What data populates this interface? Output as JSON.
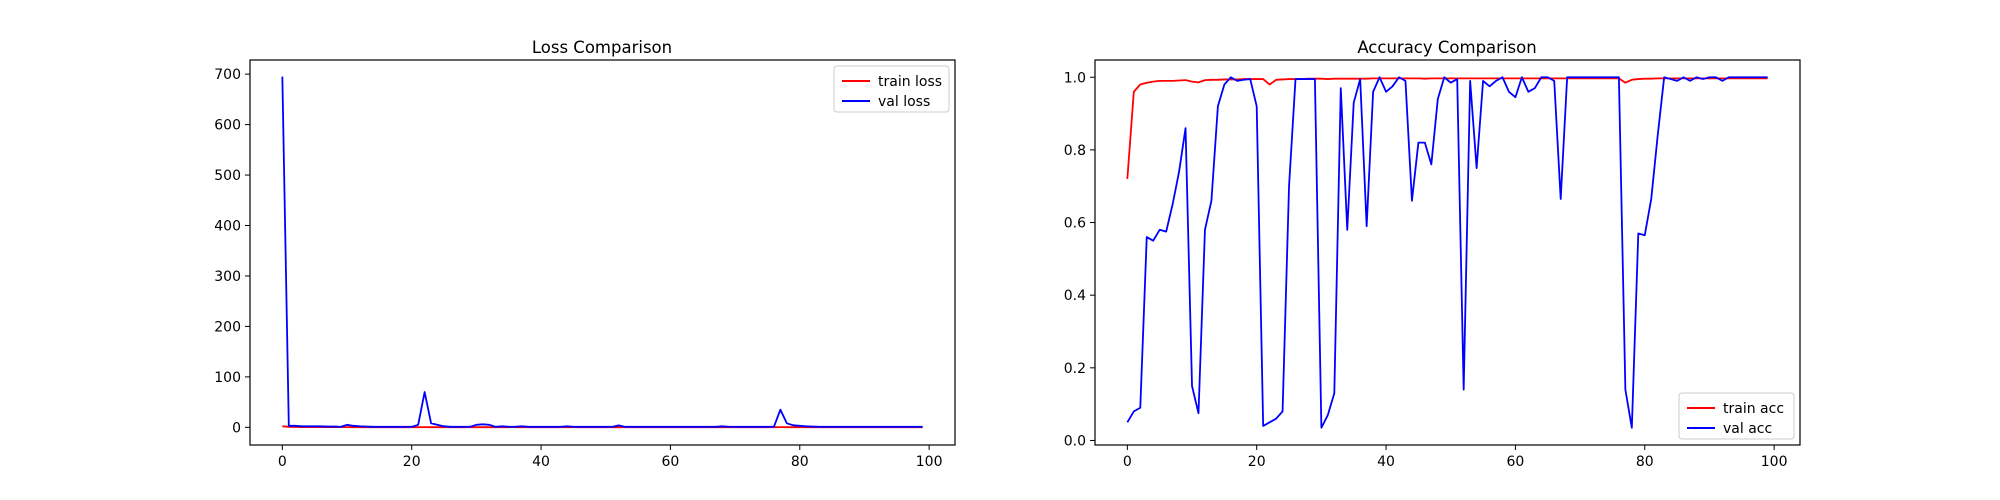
{
  "chart_data": [
    {
      "type": "line",
      "title": "Loss Comparison",
      "xlabel": "",
      "ylabel": "",
      "xlim": [
        -5,
        104
      ],
      "ylim": [
        -35,
        728
      ],
      "xticks": [
        0,
        20,
        40,
        60,
        80,
        100
      ],
      "yticks": [
        0,
        100,
        200,
        300,
        400,
        500,
        600,
        700
      ],
      "legend_position": "top-right",
      "grid": false,
      "series": [
        {
          "name": "train loss",
          "color": "#ff0000",
          "x": [
            0,
            1,
            2,
            3,
            4,
            5,
            6,
            7,
            8,
            9,
            10,
            11,
            12,
            13,
            14,
            15,
            16,
            17,
            18,
            19,
            20,
            21,
            22,
            23,
            24,
            25,
            26,
            27,
            28,
            29,
            30,
            31,
            32,
            33,
            34,
            35,
            36,
            37,
            38,
            39,
            40,
            41,
            42,
            43,
            44,
            45,
            46,
            47,
            48,
            49,
            50,
            51,
            52,
            53,
            54,
            55,
            56,
            57,
            58,
            59,
            60,
            61,
            62,
            63,
            64,
            65,
            66,
            67,
            68,
            69,
            70,
            71,
            72,
            73,
            74,
            75,
            76,
            77,
            78,
            79,
            80,
            81,
            82,
            83,
            84,
            85,
            86,
            87,
            88,
            89,
            90,
            91,
            92,
            93,
            94,
            95,
            96,
            97,
            98,
            99
          ],
          "values": [
            2,
            1,
            0.8,
            0.6,
            0.5,
            0.5,
            0.4,
            0.4,
            0.4,
            0.4,
            0.4,
            0.3,
            0.3,
            0.3,
            0.3,
            0.3,
            0.3,
            0.3,
            0.3,
            0.3,
            0.3,
            0.3,
            0.4,
            0.3,
            0.3,
            0.3,
            0.3,
            0.3,
            0.3,
            0.3,
            0.3,
            0.3,
            0.3,
            0.3,
            0.3,
            0.3,
            0.3,
            0.3,
            0.3,
            0.3,
            0.3,
            0.3,
            0.3,
            0.3,
            0.3,
            0.3,
            0.3,
            0.3,
            0.3,
            0.3,
            0.3,
            0.3,
            0.3,
            0.3,
            0.3,
            0.3,
            0.3,
            0.3,
            0.3,
            0.3,
            0.3,
            0.3,
            0.3,
            0.3,
            0.3,
            0.3,
            0.3,
            0.3,
            0.3,
            0.3,
            0.3,
            0.3,
            0.3,
            0.3,
            0.3,
            0.3,
            0.3,
            0.4,
            0.3,
            0.3,
            0.3,
            0.3,
            0.3,
            0.3,
            0.3,
            0.3,
            0.3,
            0.3,
            0.3,
            0.3,
            0.3,
            0.3,
            0.3,
            0.3,
            0.3,
            0.3,
            0.3,
            0.3,
            0.3,
            0.3
          ]
        },
        {
          "name": "val loss",
          "color": "#0000ff",
          "x": [
            0,
            1,
            2,
            3,
            4,
            5,
            6,
            7,
            8,
            9,
            10,
            11,
            12,
            13,
            14,
            15,
            16,
            17,
            18,
            19,
            20,
            21,
            22,
            23,
            24,
            25,
            26,
            27,
            28,
            29,
            30,
            31,
            32,
            33,
            34,
            35,
            36,
            37,
            38,
            39,
            40,
            41,
            42,
            43,
            44,
            45,
            46,
            47,
            48,
            49,
            50,
            51,
            52,
            53,
            54,
            55,
            56,
            57,
            58,
            59,
            60,
            61,
            62,
            63,
            64,
            65,
            66,
            67,
            68,
            69,
            70,
            71,
            72,
            73,
            74,
            75,
            76,
            77,
            78,
            79,
            80,
            81,
            82,
            83,
            84,
            85,
            86,
            87,
            88,
            89,
            90,
            91,
            92,
            93,
            94,
            95,
            96,
            97,
            98,
            99
          ],
          "values": [
            695,
            3,
            3,
            2,
            2,
            2,
            2,
            1.5,
            1.5,
            1,
            5,
            3,
            2,
            1.5,
            1,
            1,
            1,
            1,
            1,
            1,
            1,
            5,
            70,
            8,
            5,
            2,
            1,
            1,
            1,
            1,
            5,
            6,
            5,
            1,
            2,
            1,
            1,
            2,
            1,
            1,
            1,
            1,
            1,
            1,
            2,
            1,
            1,
            1,
            1,
            1,
            1,
            1,
            4,
            1,
            1,
            1,
            1,
            1,
            1,
            1,
            1,
            1,
            1,
            1,
            1,
            1,
            1,
            1,
            2,
            1,
            1,
            1,
            1,
            1,
            1,
            1,
            1,
            35,
            8,
            4,
            3,
            2,
            1.5,
            1,
            1,
            1,
            1,
            1,
            1,
            1,
            1,
            1,
            1,
            1,
            1,
            1,
            1,
            1,
            1,
            1
          ]
        }
      ]
    },
    {
      "type": "line",
      "title": "Accuracy Comparison",
      "xlabel": "",
      "ylabel": "",
      "xlim": [
        -5,
        104
      ],
      "ylim": [
        -0.0125,
        1.0475
      ],
      "xticks": [
        0,
        20,
        40,
        60,
        80,
        100
      ],
      "yticks": [
        0.0,
        0.2,
        0.4,
        0.6,
        0.8,
        1.0
      ],
      "ytick_labels": [
        "0.0",
        "0.2",
        "0.4",
        "0.6",
        "0.8",
        "1.0"
      ],
      "legend_position": "bottom-right",
      "grid": false,
      "series": [
        {
          "name": "train acc",
          "color": "#ff0000",
          "x": [
            0,
            1,
            2,
            3,
            4,
            5,
            6,
            7,
            8,
            9,
            10,
            11,
            12,
            13,
            14,
            15,
            16,
            17,
            18,
            19,
            20,
            21,
            22,
            23,
            24,
            25,
            26,
            27,
            28,
            29,
            30,
            31,
            32,
            33,
            34,
            35,
            36,
            37,
            38,
            39,
            40,
            41,
            42,
            43,
            44,
            45,
            46,
            47,
            48,
            49,
            50,
            51,
            52,
            53,
            54,
            55,
            56,
            57,
            58,
            59,
            60,
            61,
            62,
            63,
            64,
            65,
            66,
            67,
            68,
            69,
            70,
            71,
            72,
            73,
            74,
            75,
            76,
            77,
            78,
            79,
            80,
            81,
            82,
            83,
            84,
            85,
            86,
            87,
            88,
            89,
            90,
            91,
            92,
            93,
            94,
            95,
            96,
            97,
            98,
            99
          ],
          "values": [
            0.72,
            0.96,
            0.98,
            0.985,
            0.988,
            0.99,
            0.99,
            0.99,
            0.991,
            0.992,
            0.988,
            0.986,
            0.992,
            0.993,
            0.993,
            0.994,
            0.994,
            0.994,
            0.995,
            0.995,
            0.995,
            0.995,
            0.98,
            0.993,
            0.994,
            0.995,
            0.995,
            0.995,
            0.996,
            0.996,
            0.996,
            0.995,
            0.996,
            0.996,
            0.996,
            0.996,
            0.996,
            0.996,
            0.997,
            0.997,
            0.997,
            0.997,
            0.997,
            0.997,
            0.997,
            0.997,
            0.996,
            0.997,
            0.997,
            0.997,
            0.997,
            0.997,
            0.997,
            0.997,
            0.997,
            0.997,
            0.997,
            0.997,
            0.997,
            0.997,
            0.997,
            0.997,
            0.997,
            0.997,
            0.997,
            0.997,
            0.997,
            0.997,
            0.997,
            0.997,
            0.997,
            0.997,
            0.997,
            0.997,
            0.997,
            0.997,
            0.997,
            0.985,
            0.993,
            0.995,
            0.996,
            0.996,
            0.997,
            0.997,
            0.997,
            0.997,
            0.997,
            0.997,
            0.997,
            0.997,
            0.997,
            0.997,
            0.997,
            0.997,
            0.997,
            0.997,
            0.997,
            0.997,
            0.997,
            0.997
          ]
        },
        {
          "name": "val acc",
          "color": "#0000ff",
          "x": [
            0,
            1,
            2,
            3,
            4,
            5,
            6,
            7,
            8,
            9,
            10,
            11,
            12,
            13,
            14,
            15,
            16,
            17,
            18,
            19,
            20,
            21,
            22,
            23,
            24,
            25,
            26,
            27,
            28,
            29,
            30,
            31,
            32,
            33,
            34,
            35,
            36,
            37,
            38,
            39,
            40,
            41,
            42,
            43,
            44,
            45,
            46,
            47,
            48,
            49,
            50,
            51,
            52,
            53,
            54,
            55,
            56,
            57,
            58,
            59,
            60,
            61,
            62,
            63,
            64,
            65,
            66,
            67,
            68,
            69,
            70,
            71,
            72,
            73,
            74,
            75,
            76,
            77,
            78,
            79,
            80,
            81,
            82,
            83,
            84,
            85,
            86,
            87,
            88,
            89,
            90,
            91,
            92,
            93,
            94,
            95,
            96,
            97,
            98,
            99
          ],
          "values": [
            0.05,
            0.08,
            0.09,
            0.56,
            0.55,
            0.58,
            0.575,
            0.65,
            0.74,
            0.86,
            0.15,
            0.075,
            0.58,
            0.66,
            0.92,
            0.98,
            1.0,
            0.99,
            0.993,
            0.995,
            0.92,
            0.04,
            0.05,
            0.06,
            0.08,
            0.7,
            0.995,
            0.995,
            0.995,
            0.995,
            0.035,
            0.07,
            0.13,
            0.97,
            0.58,
            0.93,
            0.995,
            0.59,
            0.96,
            1.0,
            0.96,
            0.975,
            1.0,
            0.99,
            0.66,
            0.82,
            0.82,
            0.76,
            0.94,
            1.0,
            0.985,
            0.995,
            0.14,
            0.99,
            0.75,
            0.99,
            0.975,
            0.99,
            1.0,
            0.96,
            0.945,
            1.0,
            0.96,
            0.97,
            1.0,
            1.0,
            0.99,
            0.665,
            1.0,
            1.0,
            1.0,
            1.0,
            1.0,
            1.0,
            1.0,
            1.0,
            1.0,
            0.14,
            0.035,
            0.57,
            0.565,
            0.665,
            0.84,
            1.0,
            0.995,
            0.99,
            1.0,
            0.99,
            1.0,
            0.995,
            1.0,
            1.0,
            0.99,
            1.0,
            1.0,
            1.0,
            1.0,
            1.0,
            1.0,
            1.0
          ]
        }
      ]
    }
  ]
}
